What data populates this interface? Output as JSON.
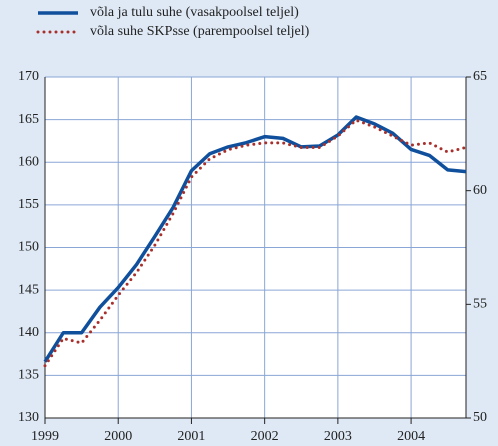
{
  "chart_data": {
    "type": "line",
    "x": [
      1999,
      1999.25,
      1999.5,
      1999.75,
      2000,
      2000.25,
      2000.5,
      2000.75,
      2001,
      2001.25,
      2001.5,
      2001.75,
      2002,
      2002.25,
      2002.5,
      2002.75,
      2003,
      2003.25,
      2003.5,
      2003.75,
      2004,
      2004.25,
      2004.5,
      2004.75
    ],
    "series": [
      {
        "name": "võla ja tulu suhe (vasakpoolsel teljel)",
        "color": "#0f4f9c",
        "style": "solid",
        "values": [
          136.6,
          140,
          140,
          143,
          145.3,
          148,
          151.3,
          154.7,
          159,
          161,
          161.8,
          162.3,
          163,
          162.8,
          161.8,
          161.9,
          163.2,
          165.3,
          164.5,
          163.4,
          161.5,
          160.8,
          159.1,
          158.9
        ]
      },
      {
        "name": "võla suhe SKPsse (parempoolsel teljel)",
        "color": "#a8302c",
        "style": "dotted",
        "axis": "y2",
        "values": [
          52.3,
          53.5,
          53.3,
          54.3,
          55.4,
          56.4,
          57.6,
          59.0,
          60.6,
          61.4,
          61.8,
          62.0,
          62.1,
          62.1,
          61.9,
          61.9,
          62.4,
          63.1,
          62.8,
          62.4,
          62.0,
          62.1,
          61.7,
          61.9
        ]
      }
    ],
    "xlim": [
      1999,
      2004.75
    ],
    "xticks": [
      1999,
      2000,
      2001,
      2002,
      2003,
      2004
    ],
    "ylim": [
      130,
      170
    ],
    "yticks": [
      130,
      135,
      140,
      145,
      150,
      155,
      160,
      165,
      170
    ],
    "y2lim": [
      50,
      65
    ],
    "y2ticks": [
      50,
      55,
      60,
      65
    ],
    "grid": true
  }
}
